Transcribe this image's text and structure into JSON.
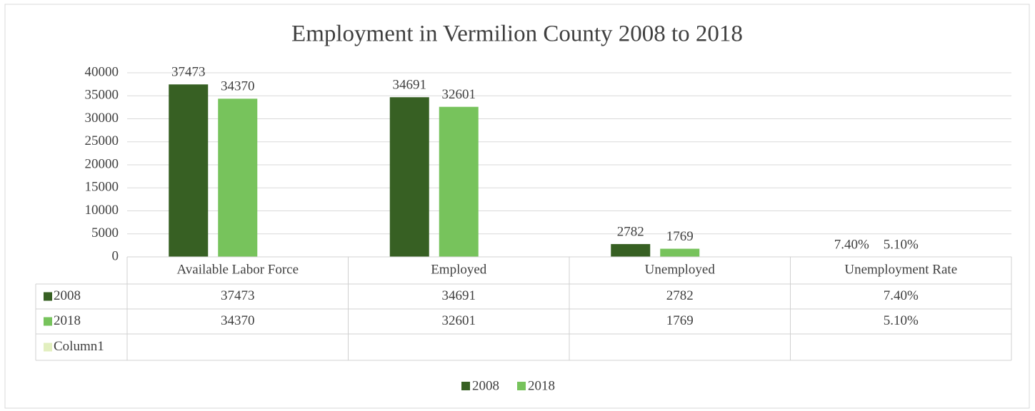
{
  "chart_data": {
    "type": "bar",
    "title": "Employment in Vermilion County 2008 to 2018",
    "categories": [
      "Available Labor Force",
      "Employed",
      "Unemployed",
      "Unemployment Rate"
    ],
    "series": [
      {
        "name": "2008",
        "color": "#376023",
        "values": [
          37473,
          34691,
          2782,
          0.074
        ],
        "value_labels": [
          "37473",
          "34691",
          "2782",
          "7.40%"
        ]
      },
      {
        "name": "2018",
        "color": "#77c35c",
        "values": [
          34370,
          32601,
          1769,
          0.051
        ],
        "value_labels": [
          "34370",
          "32601",
          "1769",
          "5.10%"
        ]
      },
      {
        "name": "Column1",
        "color": "#e2efbf",
        "values": [
          null,
          null,
          null,
          null
        ]
      }
    ],
    "ylim": [
      0,
      40000
    ],
    "yticks": [
      0,
      5000,
      10000,
      15000,
      20000,
      25000,
      30000,
      35000,
      40000
    ],
    "grid": true,
    "legend": "bottom",
    "data_table": true
  }
}
